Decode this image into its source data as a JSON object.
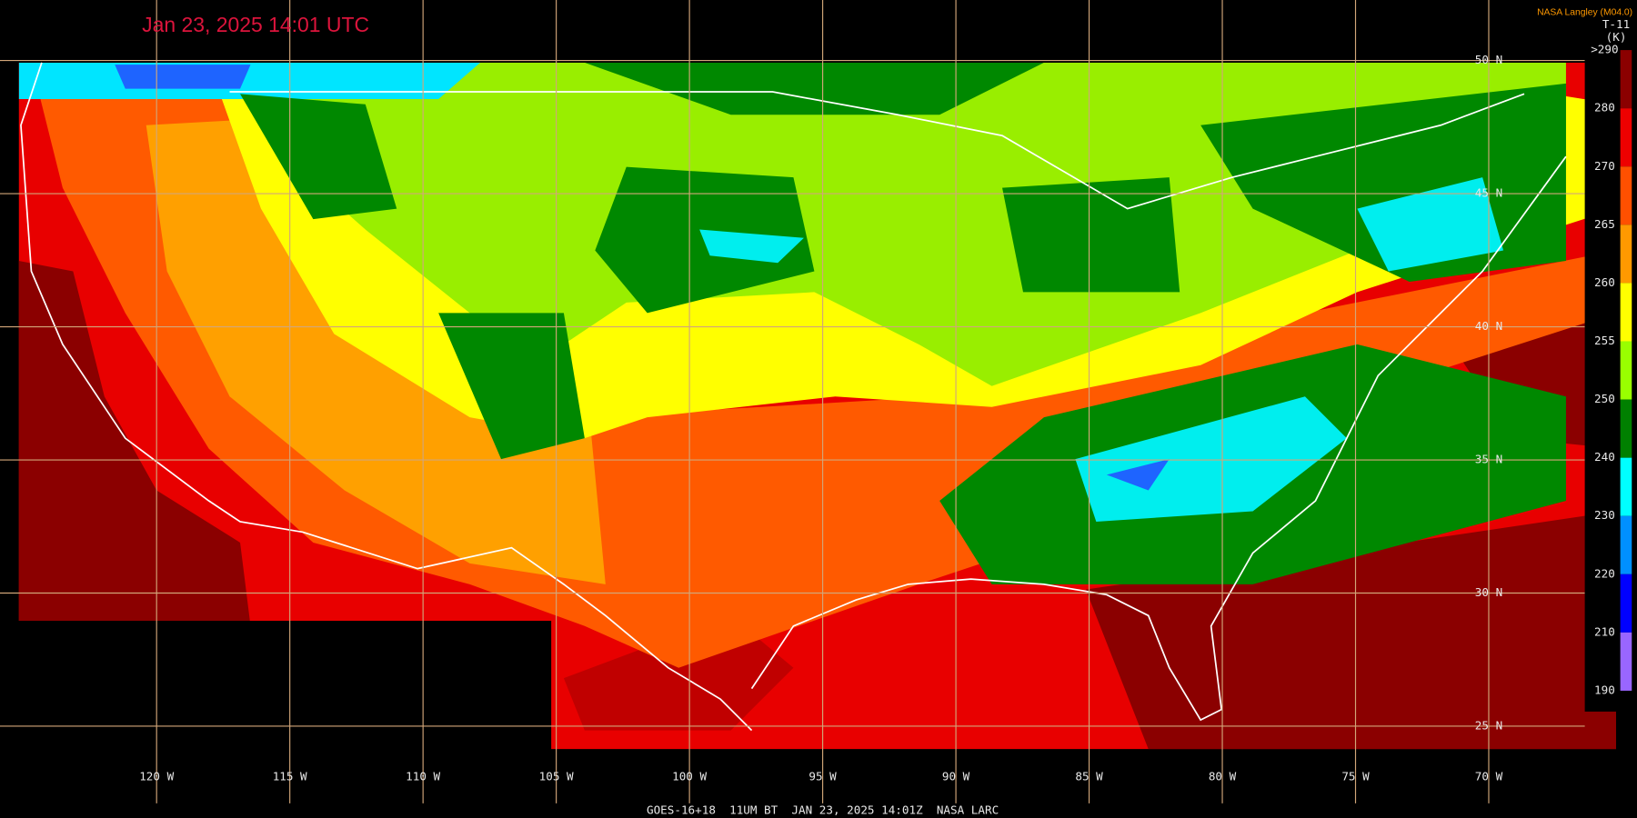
{
  "timestamp": "Jan 23, 2025 14:01 UTC",
  "attribution": "NASA Langley (M04.0)",
  "colorbar": {
    "title": "T-11",
    "unit": "(K)",
    "labels": [
      ">290",
      "280",
      "270",
      "265",
      "260",
      "255",
      "250",
      "240",
      "230",
      "220",
      "210",
      "190"
    ],
    "colors": [
      "#8b0000",
      "#ee0000",
      "#ff5000",
      "#ff9900",
      "#ffff00",
      "#99ff00",
      "#008000",
      "#00ffff",
      "#0090ff",
      "#0000ff",
      "#9966ff"
    ]
  },
  "latitude_labels": [
    "50 N",
    "45 N",
    "40 N",
    "35 N",
    "30 N",
    "25 N"
  ],
  "longitude_labels": [
    "120 W",
    "115 W",
    "110 W",
    "105 W",
    "100 W",
    "95 W",
    "90 W",
    "85 W",
    "80 W",
    "75 W",
    "70 W"
  ],
  "footer": "GOES-16+18  11UM BT  JAN 23, 2025 14:01Z  NASA LARC"
}
